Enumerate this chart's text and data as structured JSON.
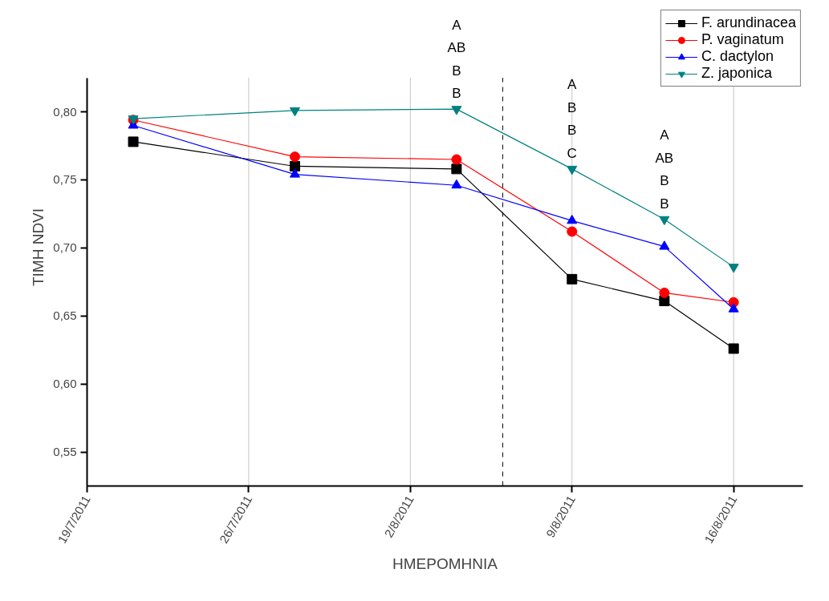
{
  "chart_data": {
    "type": "line",
    "xlabel": "ΗΜΕΡΟΜΗΝΙΑ",
    "ylabel": "ΤΙΜΗ NDVI",
    "x": [
      "2011-07-21",
      "2011-07-28",
      "2011-08-04",
      "2011-08-09",
      "2011-08-13",
      "2011-08-16"
    ],
    "series": [
      {
        "name": "F. arundinacea",
        "color": "#000000",
        "marker": "square",
        "values": [
          0.778,
          0.76,
          0.758,
          0.677,
          0.661,
          0.626
        ]
      },
      {
        "name": "P. vaginatum",
        "color": "#ff0000",
        "marker": "circle",
        "values": [
          0.794,
          0.767,
          0.765,
          0.712,
          0.667,
          0.66
        ]
      },
      {
        "name": "C. dactylon",
        "color": "#0000ff",
        "marker": "triangle",
        "values": [
          0.79,
          0.754,
          0.746,
          0.72,
          0.701,
          0.655
        ]
      },
      {
        "name": "Z. japonica",
        "color": "#008080",
        "marker": "triangle",
        "values": [
          0.795,
          0.801,
          0.802,
          0.758,
          0.721,
          0.686
        ]
      }
    ],
    "xlim": [
      "2011-07-19",
      "2011-08-19"
    ],
    "xticks": [
      {
        "value": "2011-07-19",
        "label": "19/7/2011"
      },
      {
        "value": "2011-07-26",
        "label": "26/7/2011"
      },
      {
        "value": "2011-08-02",
        "label": "2/8/2011"
      },
      {
        "value": "2011-08-09",
        "label": "9/8/2011"
      },
      {
        "value": "2011-08-16",
        "label": "16/8/2011"
      }
    ],
    "ylim": [
      0.525,
      0.825
    ],
    "yticks": [
      {
        "value": 0.55,
        "label": "0,55"
      },
      {
        "value": 0.6,
        "label": "0,60"
      },
      {
        "value": 0.65,
        "label": "0,65"
      },
      {
        "value": 0.7,
        "label": "0,70"
      },
      {
        "value": 0.75,
        "label": "0,75"
      },
      {
        "value": 0.8,
        "label": "0,80"
      }
    ],
    "ref_lines": [
      {
        "axis": "x",
        "value": "2011-08-06",
        "label": null,
        "color": "#000000",
        "line_style": "dashed"
      }
    ],
    "annotations": [
      {
        "text": "A\nAB\nB\nB",
        "x": "2011-08-04",
        "y": 0.802
      },
      {
        "text": "A\nB\nB\nC",
        "x": "2011-08-09",
        "y": 0.758
      },
      {
        "text": "A\nAB\nB\nB",
        "x": "2011-08-13",
        "y": 0.721
      }
    ],
    "grid": "x",
    "legend": "top right",
    "line_style": "solid"
  }
}
